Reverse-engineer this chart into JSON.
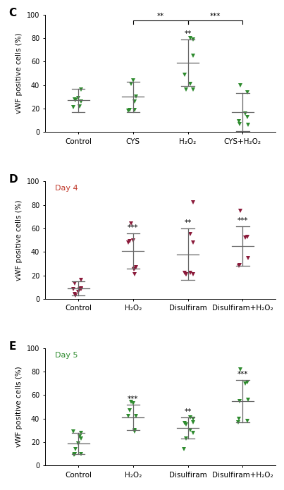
{
  "panel_C": {
    "label": "C",
    "color": "#2e8b2e",
    "day_label": null,
    "day_color": null,
    "categories": [
      "Control",
      "CYS",
      "H₂O₂",
      "CYS+H₂O₂"
    ],
    "means": [
      27,
      30,
      59,
      17
    ],
    "sds": [
      10,
      13,
      20,
      16
    ],
    "points": [
      [
        26,
        21,
        22,
        36,
        29,
        27,
        28
      ],
      [
        41,
        44,
        19,
        18,
        30,
        26,
        19
      ],
      [
        79,
        80,
        65,
        49,
        36,
        41,
        36
      ],
      [
        40,
        34,
        16,
        6,
        7,
        9,
        13
      ]
    ],
    "sig_above": [
      null,
      null,
      "**",
      null
    ],
    "bracket_sig": [
      {
        "from": 1,
        "to": 2,
        "label": "**"
      },
      {
        "from": 2,
        "to": 3,
        "label": "***"
      }
    ],
    "ylim": [
      0,
      100
    ],
    "yticks": [
      0,
      20,
      40,
      60,
      80,
      100
    ]
  },
  "panel_D": {
    "label": "D",
    "color": "#8b1a3a",
    "day_label": "Day 4",
    "day_color": "#c0392b",
    "categories": [
      "Control",
      "H₂O₂",
      "Disulfiram",
      "Disulfiram+H₂O₂"
    ],
    "means": [
      9,
      41,
      38,
      45
    ],
    "sds": [
      6,
      15,
      22,
      17
    ],
    "points": [
      [
        9,
        8,
        8,
        8,
        6,
        3,
        13,
        16,
        4
      ],
      [
        64,
        50,
        49,
        48,
        27,
        26,
        21,
        25
      ],
      [
        82,
        55,
        48,
        22,
        21,
        22,
        21,
        21
      ],
      [
        75,
        53,
        52,
        35,
        29,
        28
      ]
    ],
    "sig_above": [
      null,
      "***",
      "**",
      "***"
    ],
    "bracket_sig": null,
    "ylim": [
      0,
      100
    ],
    "yticks": [
      0,
      20,
      40,
      60,
      80,
      100
    ]
  },
  "panel_E": {
    "label": "E",
    "color": "#2e8b2e",
    "day_label": "Day 5",
    "day_color": "#2e8b2e",
    "categories": [
      "Control",
      "H₂O₂",
      "Disulfiram",
      "Disulfiram+H₂O₂"
    ],
    "means": [
      19,
      41,
      32,
      55
    ],
    "sds": [
      9,
      11,
      9,
      18
    ],
    "points": [
      [
        28,
        29,
        25,
        23,
        19,
        14,
        10,
        10,
        10,
        9
      ],
      [
        54,
        53,
        47,
        42,
        42,
        30,
        29
      ],
      [
        40,
        41,
        37,
        36,
        35,
        30,
        28,
        23,
        14
      ],
      [
        82,
        71,
        70,
        56,
        55,
        40,
        38,
        37
      ]
    ],
    "sig_above": [
      null,
      "***",
      "**",
      "***"
    ],
    "bracket_sig": null,
    "ylim": [
      0,
      100
    ],
    "yticks": [
      0,
      20,
      40,
      60,
      80,
      100
    ]
  },
  "ylabel": "vWF positive cells (%)",
  "marker": "v",
  "marker_size": 5,
  "line_color": "#666666",
  "line_width": 0.9,
  "panel_label_fontsize": 11,
  "tick_fontsize": 7,
  "xlabel_fontsize": 7.5,
  "ylabel_fontsize": 7.5,
  "sig_fontsize": 7.5
}
